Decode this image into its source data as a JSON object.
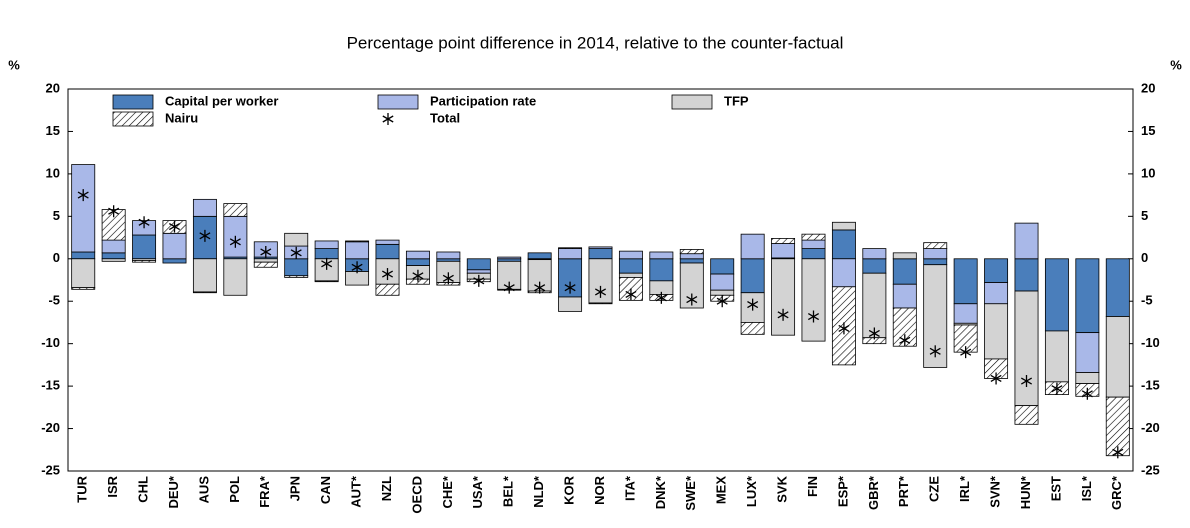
{
  "chart_data": {
    "type": "bar",
    "stacked": true,
    "title": "Percentage point difference in 2014, relative to the counter-factual",
    "y_label": "%",
    "categories": [
      "TUR",
      "ISR",
      "CHL",
      "DEU*",
      "AUS",
      "POL",
      "FRA*",
      "JPN",
      "CAN",
      "AUT*",
      "NZL",
      "OECD",
      "CHE*",
      "USA*",
      "BEL*",
      "NLD*",
      "KOR",
      "NOR",
      "ITA*",
      "DNK*",
      "SWE*",
      "MEX",
      "LUX*",
      "SVK",
      "FIN",
      "ESP*",
      "GBR*",
      "PRT*",
      "CZE",
      "IRL*",
      "SVN*",
      "HUN*",
      "EST",
      "ISL*",
      "GRC*"
    ],
    "series": [
      {
        "name": "Capital per worker",
        "color": "#4a7ebb",
        "values": [
          0.8,
          0.7,
          2.8,
          -0.5,
          5.0,
          0.2,
          0.2,
          -2.0,
          1.2,
          -1.5,
          1.7,
          -0.8,
          -0.3,
          -1.3,
          -0.3,
          0.7,
          -4.5,
          1.2,
          -1.7,
          -2.6,
          -0.5,
          -1.8,
          -4.0,
          0.1,
          1.2,
          3.4,
          -1.7,
          -3.0,
          -0.7,
          -5.3,
          -2.8,
          -3.8,
          -8.5,
          -8.7,
          -6.8
        ]
      },
      {
        "name": "Participation rate",
        "color": "#a9b8e8",
        "values": [
          10.3,
          1.5,
          1.7,
          3.0,
          2.0,
          4.8,
          1.8,
          1.5,
          0.9,
          2.0,
          0.5,
          0.9,
          0.8,
          -0.4,
          0.2,
          -0.1,
          1.2,
          0.2,
          0.9,
          0.8,
          0.6,
          -1.9,
          2.9,
          1.7,
          1.0,
          -3.3,
          1.2,
          -2.8,
          1.2,
          -2.3,
          -2.5,
          4.2,
          0,
          -4.7,
          0
        ]
      },
      {
        "name": "TFP",
        "color": "#d3d3d3",
        "values": [
          -3.4,
          -0.3,
          -0.2,
          0,
          -3.9,
          -4.3,
          -0.4,
          1.5,
          -2.6,
          -1.6,
          -3.0,
          -1.6,
          -2.5,
          -0.7,
          -3.3,
          -3.7,
          -1.7,
          -5.2,
          -0.5,
          -1.6,
          -5.3,
          -0.6,
          -3.5,
          -9.0,
          -9.7,
          0.9,
          -7.6,
          0.7,
          -12.1,
          -0.2,
          -6.5,
          -13.5,
          -6.0,
          -1.3,
          -9.5
        ]
      },
      {
        "name": "Nairu",
        "color": "#000000",
        "hatch": true,
        "values": [
          -0.2,
          3.6,
          -0.2,
          1.5,
          -0.1,
          1.5,
          -0.6,
          -0.2,
          -0.1,
          0.1,
          -1.3,
          -0.6,
          -0.3,
          -0.3,
          -0.1,
          -0.2,
          0.1,
          -0.1,
          -2.7,
          -0.7,
          0.5,
          -0.7,
          -1.4,
          0.6,
          0.7,
          -9.2,
          -0.7,
          -4.5,
          0.7,
          -3.2,
          -2.3,
          -2.2,
          -1.5,
          -1.5,
          -6.9
        ]
      },
      {
        "name": "Total",
        "color": "#000000",
        "marker": "asterisk",
        "values": [
          7.5,
          5.6,
          4.3,
          3.8,
          2.7,
          2.0,
          0.8,
          0.7,
          -0.6,
          -1.0,
          -1.8,
          -2.0,
          -2.3,
          -2.6,
          -3.4,
          -3.4,
          -3.4,
          -3.9,
          -4.2,
          -4.6,
          -4.8,
          -5.0,
          -5.4,
          -6.6,
          -6.8,
          -8.2,
          -8.8,
          -9.6,
          -10.9,
          -11.0,
          -14.1,
          -14.4,
          -15.3,
          -15.9,
          -22.8
        ]
      }
    ],
    "ylim": [
      -25,
      20
    ],
    "yticks": [
      -25,
      -20,
      -15,
      -10,
      -5,
      0,
      5,
      10,
      15,
      20
    ]
  }
}
